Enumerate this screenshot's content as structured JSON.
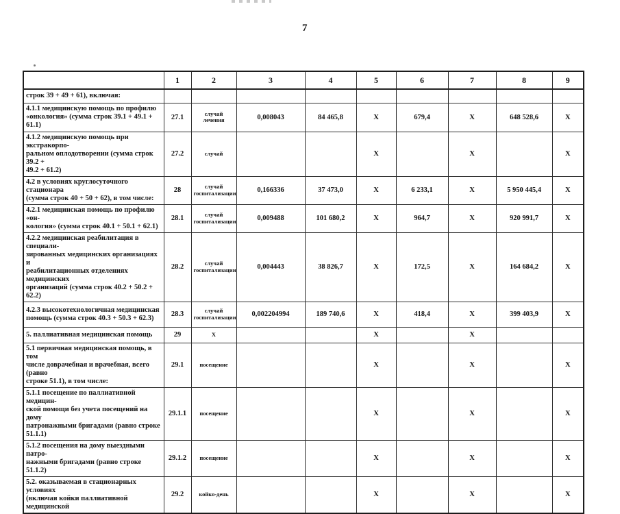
{
  "page": {
    "number": "7"
  },
  "table": {
    "header": [
      "",
      "1",
      "2",
      "3",
      "4",
      "5",
      "6",
      "7",
      "8",
      "9"
    ],
    "rows": [
      {
        "label": "строк 39 + 49 + 61), включая:",
        "num": "",
        "unit": "",
        "values": [
          "",
          "",
          "",
          "",
          "",
          "",
          ""
        ]
      },
      {
        "label": "4.1.1 медицинскую помощь по профилю\n«онкология» (сумма строк 39.1 + 49.1 + 61.1)",
        "num": "27.1",
        "unit": "случай лечения",
        "values": [
          "0,008043",
          "84 465,8",
          "X",
          "679,4",
          "X",
          "648 528,6",
          "X"
        ]
      },
      {
        "label": "4.1.2 медицинскую помощь при экстракорпо-\nральном оплодотворении (сумма строк 39.2 +\n49.2 + 61.2)",
        "num": "27.2",
        "unit": "случай",
        "values": [
          "",
          "",
          "X",
          "",
          "X",
          "",
          "X"
        ]
      },
      {
        "label": "4.2 в условиях круглосуточного стационара\n(сумма строк 40 + 50 + 62), в том числе:",
        "num": "28",
        "unit": "случай\nгоспитализации",
        "values": [
          "0,166336",
          "37 473,0",
          "X",
          "6 233,1",
          "X",
          "5 950 445,4",
          "X"
        ]
      },
      {
        "label": "4.2.1 медицинская помощь по профилю «он-\nкология» (сумма строк 40.1 + 50.1 + 62.1)",
        "num": "28.1",
        "unit": "случай\nгоспитализации",
        "values": [
          "0,009488",
          "101 680,2",
          "X",
          "964,7",
          "X",
          "920 991,7",
          "X"
        ]
      },
      {
        "label": "4.2.2 медицинская реабилитация в специали-\nзированных медицинских организациях и\nреабилитационных отделениях медицинских\nорганизаций (сумма строк 40.2 + 50.2 + 62.2)",
        "num": "28.2",
        "unit": "случай\nгоспитализации",
        "values": [
          "0,004443",
          "38 826,7",
          "X",
          "172,5",
          "X",
          "164 684,2",
          "X"
        ]
      },
      {
        "label": "4.2.3 высокотехнологичная медицинская\nпомощь (сумма строк 40.3 + 50.3 + 62.3)",
        "num": "28.3",
        "unit": "случай\nгоспитализации",
        "values": [
          "0,002204994",
          "189 740,6",
          "X",
          "418,4",
          "X",
          "399 403,9",
          "X"
        ]
      },
      {
        "label": "5. паллиативная медицинская помощь",
        "num": "29",
        "unit": "X",
        "values": [
          "",
          "",
          "X",
          "",
          "X",
          "",
          ""
        ]
      },
      {
        "label": "5.1 первичная медицинская помощь, в том\nчисле доврачебная и врачебная, всего (равно\nстроке 51.1), в том числе:",
        "num": "29.1",
        "unit": "посещение",
        "values": [
          "",
          "",
          "X",
          "",
          "X",
          "",
          "X"
        ]
      },
      {
        "label": "5.1.1 посещение по паллиативной медицин-\nской помощи без учета посещений на дому\nпатронажными бригадами (равно строке\n51.1.1)",
        "num": "29.1.1",
        "unit": "посещение",
        "values": [
          "",
          "",
          "X",
          "",
          "X",
          "",
          "X"
        ]
      },
      {
        "label": "5.1.2 посещения на дому выездными патро-\nнажными бригадами (равно строке 51.1.2)",
        "num": "29.1.2",
        "unit": "посещение",
        "values": [
          "",
          "",
          "X",
          "",
          "X",
          "",
          "X"
        ]
      },
      {
        "label": "5.2. оказываемая в стационарных условиях\n(включая койки паллиативной медицинской",
        "num": "29.2",
        "unit": "койко-день",
        "values": [
          "",
          "",
          "X",
          "",
          "X",
          "",
          "X"
        ]
      }
    ]
  }
}
